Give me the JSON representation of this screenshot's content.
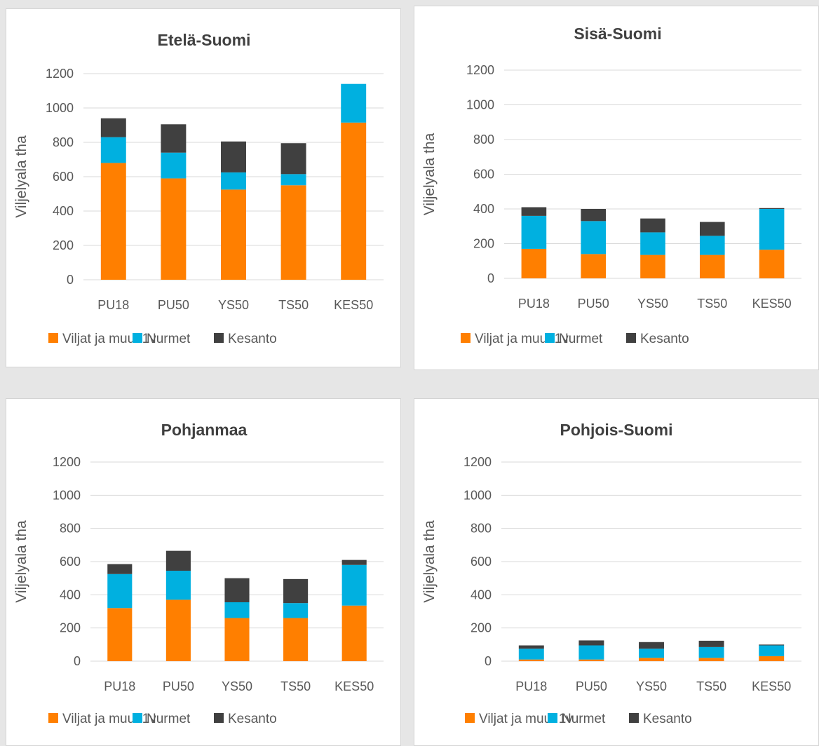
{
  "colors": {
    "viljat": "#ff7f00",
    "nurmet": "#00b0e0",
    "kesanto": "#404040"
  },
  "chart_data": [
    {
      "type": "bar",
      "stacked": true,
      "title": "Etelä-Suomi",
      "ylabel": "Viljelyala tha",
      "xlabel": "",
      "ylim": [
        0,
        1200
      ],
      "yticks": [
        "0",
        "200",
        "400",
        "600",
        "800",
        "1000",
        "1200"
      ],
      "categories": [
        "PU18",
        "PU50",
        "YS50",
        "TS50",
        "KES50"
      ],
      "legend_position": "bottom",
      "series": [
        {
          "name": "Viljat ja muut 1v",
          "values": [
            680,
            590,
            525,
            550,
            915
          ]
        },
        {
          "name": "Nurmet",
          "values": [
            150,
            150,
            100,
            65,
            225
          ]
        },
        {
          "name": "Kesanto",
          "values": [
            110,
            165,
            180,
            180,
            0
          ]
        }
      ]
    },
    {
      "type": "bar",
      "stacked": true,
      "title": "Sisä-Suomi",
      "ylabel": "Viljelyala tha",
      "xlabel": "",
      "ylim": [
        0,
        1200
      ],
      "yticks": [
        "0",
        "200",
        "400",
        "600",
        "800",
        "1000",
        "1200"
      ],
      "categories": [
        "PU18",
        "PU50",
        "YS50",
        "TS50",
        "KES50"
      ],
      "legend_position": "bottom",
      "series": [
        {
          "name": "Viljat ja muut 1v",
          "values": [
            170,
            140,
            135,
            135,
            165
          ]
        },
        {
          "name": "Nurmet",
          "values": [
            190,
            190,
            130,
            110,
            235
          ]
        },
        {
          "name": "Kesanto",
          "values": [
            50,
            70,
            80,
            80,
            5
          ]
        }
      ]
    },
    {
      "type": "bar",
      "stacked": true,
      "title": "Pohjanmaa",
      "ylabel": "Viljelyala tha",
      "xlabel": "",
      "ylim": [
        0,
        1200
      ],
      "yticks": [
        "0",
        "200",
        "400",
        "600",
        "800",
        "1000",
        "1200"
      ],
      "categories": [
        "PU18",
        "PU50",
        "YS50",
        "TS50",
        "KES50"
      ],
      "legend_position": "bottom",
      "series": [
        {
          "name": "Viljat ja muut 1v",
          "values": [
            320,
            370,
            260,
            260,
            335
          ]
        },
        {
          "name": "Nurmet",
          "values": [
            205,
            175,
            95,
            90,
            245
          ]
        },
        {
          "name": "Kesanto",
          "values": [
            60,
            120,
            145,
            145,
            30
          ]
        }
      ]
    },
    {
      "type": "bar",
      "stacked": true,
      "title": "Pohjois-Suomi",
      "ylabel": "Viljelyala tha",
      "xlabel": "",
      "ylim": [
        0,
        1200
      ],
      "yticks": [
        "0",
        "200",
        "400",
        "600",
        "800",
        "1000",
        "1200"
      ],
      "categories": [
        "PU18",
        "PU50",
        "YS50",
        "TS50",
        "KES50"
      ],
      "legend_position": "bottom",
      "series": [
        {
          "name": "Viljat ja muut 1v",
          "values": [
            10,
            10,
            20,
            20,
            30
          ]
        },
        {
          "name": "Nurmet",
          "values": [
            65,
            85,
            55,
            65,
            65
          ]
        },
        {
          "name": "Kesanto",
          "values": [
            20,
            30,
            40,
            38,
            5
          ]
        }
      ]
    }
  ]
}
